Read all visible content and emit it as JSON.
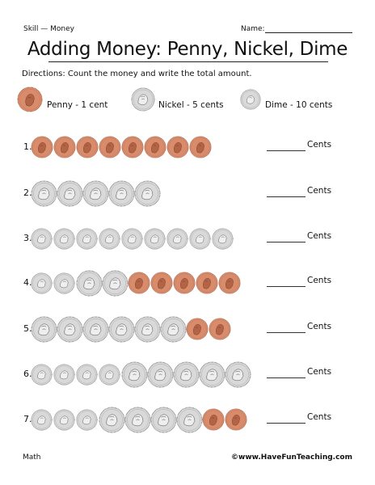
{
  "header": {
    "skill_label": "Skill — Money",
    "name_label": "Name:"
  },
  "title": "Adding Money: Penny, Nickel, Dime",
  "directions": "Directions: Count the money and write the total amount.",
  "legend": [
    {
      "coin": "penny",
      "label": "Penny - 1 cent"
    },
    {
      "coin": "nickel",
      "label": "Nickel - 5 cents"
    },
    {
      "coin": "dime",
      "label": "Dime - 10 cents"
    }
  ],
  "answer_label": "Cents",
  "problems": [
    {
      "number": "1.",
      "coins": [
        "penny",
        "penny",
        "penny",
        "penny",
        "penny",
        "penny",
        "penny",
        "penny"
      ]
    },
    {
      "number": "2.",
      "coins": [
        "nickel",
        "nickel",
        "nickel",
        "nickel",
        "nickel"
      ]
    },
    {
      "number": "3.",
      "coins": [
        "dime",
        "dime",
        "dime",
        "dime",
        "dime",
        "dime",
        "dime",
        "dime",
        "dime"
      ]
    },
    {
      "number": "4.",
      "coins": [
        "dime",
        "dime",
        "nickel",
        "nickel",
        "penny",
        "penny",
        "penny",
        "penny",
        "penny"
      ]
    },
    {
      "number": "5.",
      "coins": [
        "nickel",
        "nickel",
        "nickel",
        "nickel",
        "nickel",
        "nickel",
        "penny",
        "penny"
      ]
    },
    {
      "number": "6.",
      "coins": [
        "dime",
        "dime",
        "dime",
        "dime",
        "nickel",
        "nickel",
        "nickel",
        "nickel",
        "nickel"
      ]
    },
    {
      "number": "7.",
      "coins": [
        "dime",
        "dime",
        "dime",
        "nickel",
        "nickel",
        "nickel",
        "nickel",
        "penny",
        "penny"
      ]
    }
  ],
  "footer": {
    "subject": "Math",
    "website": "©www.HaveFunTeaching.com"
  },
  "colors": {
    "penny": "#d98c6c",
    "silver": "#d9d9d9"
  }
}
